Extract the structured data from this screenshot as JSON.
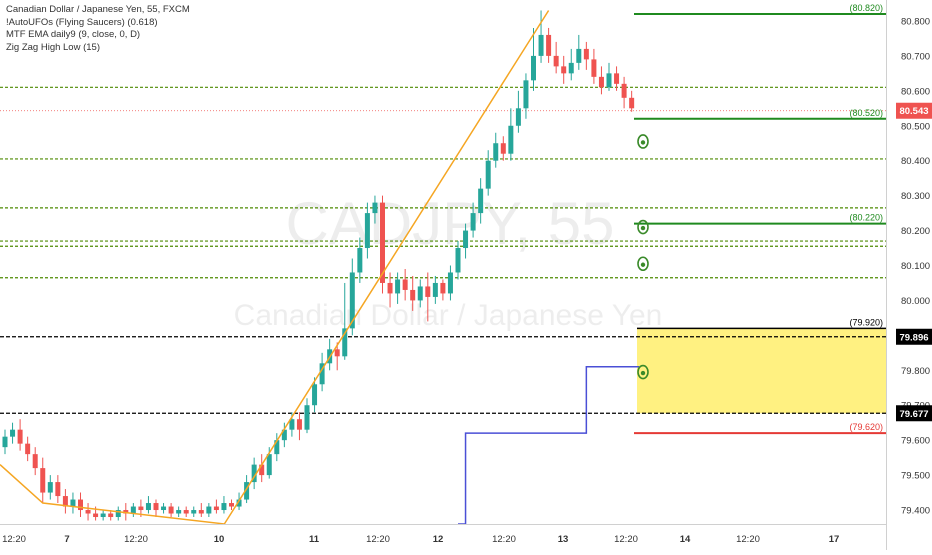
{
  "legend": {
    "line1": "Canadian Dollar / Japanese Yen, 55, FXCM",
    "line2": "!AutoUFOs (Flying Saucers) (0.618)",
    "line3": "MTF EMA daily9 (9, close, 0, D)",
    "line4": "Zig Zag High Low (15)"
  },
  "watermark": {
    "symbol": "CADJPY, 55",
    "name": "Canadian Dollar / Japanese Yen"
  },
  "colors": {
    "up": "#26a69a",
    "down": "#ef5350",
    "zigzag": "#f5a623",
    "ema": "#4a4fd6",
    "level_green": "#1f8a1f",
    "level_dashed": "#4c8a00",
    "zone_fill": "#fff07a",
    "red_line": "#e53935",
    "price_tag": "#ef5350"
  },
  "chart_data": {
    "type": "candlestick",
    "title": "Canadian Dollar / Japanese Yen, 55, FXCM",
    "ylim": [
      79.36,
      80.86
    ],
    "y_ticks": [
      79.4,
      79.5,
      79.6,
      79.7,
      79.8,
      79.9,
      80.0,
      80.1,
      80.2,
      80.3,
      80.4,
      80.5,
      80.6,
      80.7,
      80.8
    ],
    "y_tick_labels": [
      "79.400",
      "79.500",
      "79.600",
      "79.700",
      "79.800",
      "79.900",
      "80.000",
      "80.100",
      "80.200",
      "80.300",
      "80.400",
      "80.500",
      "80.600",
      "80.700",
      "80.800"
    ],
    "x_tick_labels": [
      "12:20",
      "7",
      "12:20",
      "10",
      "11",
      "12:20",
      "12",
      "12:20",
      "13",
      "12:20",
      "14",
      "12:20",
      "17"
    ],
    "last_price": "80.543",
    "price_tags": [
      {
        "label": "79.896",
        "value": 79.896
      },
      {
        "label": "79.677",
        "value": 79.677
      }
    ],
    "level_labels": [
      {
        "label": "(80.820)",
        "value": 80.82
      },
      {
        "label": "(80.520)",
        "value": 80.52
      },
      {
        "label": "(80.220)",
        "value": 80.22
      },
      {
        "label": "(79.920)",
        "value": 79.92
      },
      {
        "label": "(79.620)",
        "value": 79.62
      }
    ],
    "dashed_levels": [
      80.61,
      80.405,
      80.265,
      80.17,
      80.155,
      80.065
    ],
    "zone": {
      "top": 79.92,
      "bottom": 79.677
    },
    "zigzag": [
      {
        "bar": 0,
        "price": 79.53
      },
      {
        "bar": 2,
        "price": 79.46
      },
      {
        "bar": 72,
        "price": 80.83
      }
    ],
    "ema_steps": [
      {
        "from_bar": 60,
        "to_bar": 61,
        "price": 79.36
      },
      {
        "from_bar": 61,
        "to_bar": 77,
        "price": 79.62
      },
      {
        "from_bar": 77,
        "to_bar": 84,
        "price": 79.81
      }
    ],
    "saucers": [
      80.455,
      80.21,
      80.105,
      79.795
    ],
    "candles": [
      [
        79.58,
        79.61,
        79.56,
        79.63
      ],
      [
        79.61,
        79.63,
        79.59,
        79.65
      ],
      [
        79.63,
        79.59,
        79.57,
        79.66
      ],
      [
        79.59,
        79.56,
        79.54,
        79.61
      ],
      [
        79.56,
        79.52,
        79.5,
        79.58
      ],
      [
        79.52,
        79.45,
        79.42,
        79.55
      ],
      [
        79.45,
        79.48,
        79.43,
        79.5
      ],
      [
        79.48,
        79.44,
        79.42,
        79.5
      ],
      [
        79.44,
        79.41,
        79.39,
        79.46
      ],
      [
        79.41,
        79.43,
        79.39,
        79.45
      ],
      [
        79.43,
        79.4,
        79.38,
        79.45
      ],
      [
        79.4,
        79.39,
        79.37,
        79.42
      ],
      [
        79.39,
        79.38,
        79.37,
        79.41
      ],
      [
        79.38,
        79.39,
        79.37,
        79.4
      ],
      [
        79.39,
        79.38,
        79.37,
        79.4
      ],
      [
        79.38,
        79.4,
        79.37,
        79.41
      ],
      [
        79.4,
        79.39,
        79.37,
        79.42
      ],
      [
        79.39,
        79.41,
        79.38,
        79.42
      ],
      [
        79.41,
        79.4,
        79.38,
        79.43
      ],
      [
        79.4,
        79.42,
        79.39,
        79.44
      ],
      [
        79.42,
        79.4,
        79.38,
        79.43
      ],
      [
        79.4,
        79.41,
        79.39,
        79.42
      ],
      [
        79.41,
        79.39,
        79.38,
        79.42
      ],
      [
        79.39,
        79.4,
        79.38,
        79.41
      ],
      [
        79.4,
        79.39,
        79.38,
        79.41
      ],
      [
        79.39,
        79.4,
        79.38,
        79.41
      ],
      [
        79.4,
        79.39,
        79.38,
        79.42
      ],
      [
        79.39,
        79.41,
        79.38,
        79.42
      ],
      [
        79.41,
        79.4,
        79.39,
        79.43
      ],
      [
        79.4,
        79.42,
        79.39,
        79.44
      ],
      [
        79.42,
        79.41,
        79.4,
        79.43
      ],
      [
        79.41,
        79.43,
        79.4,
        79.45
      ],
      [
        79.43,
        79.48,
        79.42,
        79.5
      ],
      [
        79.48,
        79.53,
        79.46,
        79.55
      ],
      [
        79.53,
        79.5,
        79.48,
        79.56
      ],
      [
        79.5,
        79.56,
        79.49,
        79.58
      ],
      [
        79.56,
        79.6,
        79.54,
        79.62
      ],
      [
        79.6,
        79.63,
        79.58,
        79.65
      ],
      [
        79.63,
        79.66,
        79.61,
        79.68
      ],
      [
        79.66,
        79.63,
        79.6,
        79.68
      ],
      [
        79.63,
        79.7,
        79.62,
        79.72
      ],
      [
        79.7,
        79.76,
        79.68,
        79.78
      ],
      [
        79.76,
        79.82,
        79.74,
        79.85
      ],
      [
        79.82,
        79.86,
        79.8,
        79.89
      ],
      [
        79.86,
        79.84,
        79.8,
        79.88
      ],
      [
        79.84,
        79.92,
        79.83,
        80.05
      ],
      [
        79.92,
        80.08,
        79.9,
        80.12
      ],
      [
        80.08,
        80.15,
        80.05,
        80.18
      ],
      [
        80.15,
        80.25,
        80.12,
        80.28
      ],
      [
        80.25,
        80.28,
        80.22,
        80.3
      ],
      [
        80.28,
        80.05,
        80.02,
        80.3
      ],
      [
        80.05,
        80.02,
        79.98,
        80.08
      ],
      [
        80.02,
        80.06,
        79.99,
        80.08
      ],
      [
        80.06,
        80.03,
        80.0,
        80.09
      ],
      [
        80.03,
        80.0,
        79.97,
        80.07
      ],
      [
        80.0,
        80.04,
        79.98,
        80.06
      ],
      [
        80.04,
        80.01,
        79.94,
        80.08
      ],
      [
        80.01,
        80.05,
        79.99,
        80.07
      ],
      [
        80.05,
        80.02,
        80.0,
        80.06
      ],
      [
        80.02,
        80.08,
        80.0,
        80.1
      ],
      [
        80.08,
        80.15,
        80.06,
        80.17
      ],
      [
        80.15,
        80.2,
        80.12,
        80.22
      ],
      [
        80.2,
        80.25,
        80.18,
        80.28
      ],
      [
        80.25,
        80.32,
        80.22,
        80.35
      ],
      [
        80.32,
        80.4,
        80.3,
        80.43
      ],
      [
        80.4,
        80.45,
        80.38,
        80.48
      ],
      [
        80.45,
        80.42,
        80.4,
        80.47
      ],
      [
        80.42,
        80.5,
        80.4,
        80.55
      ],
      [
        80.5,
        80.55,
        80.48,
        80.6
      ],
      [
        80.55,
        80.63,
        80.52,
        80.65
      ],
      [
        80.63,
        80.7,
        80.6,
        80.78
      ],
      [
        80.7,
        80.76,
        80.68,
        80.83
      ],
      [
        80.76,
        80.7,
        80.68,
        80.78
      ],
      [
        80.7,
        80.67,
        80.65,
        80.74
      ],
      [
        80.67,
        80.65,
        80.62,
        80.7
      ],
      [
        80.65,
        80.68,
        80.63,
        80.72
      ],
      [
        80.68,
        80.72,
        80.66,
        80.76
      ],
      [
        80.72,
        80.69,
        80.66,
        80.74
      ],
      [
        80.69,
        80.64,
        80.62,
        80.72
      ],
      [
        80.64,
        80.61,
        80.59,
        80.67
      ],
      [
        80.61,
        80.65,
        80.6,
        80.68
      ],
      [
        80.65,
        80.62,
        80.6,
        80.67
      ],
      [
        80.62,
        80.58,
        80.55,
        80.64
      ],
      [
        80.58,
        80.55,
        80.54,
        80.6
      ]
    ]
  }
}
